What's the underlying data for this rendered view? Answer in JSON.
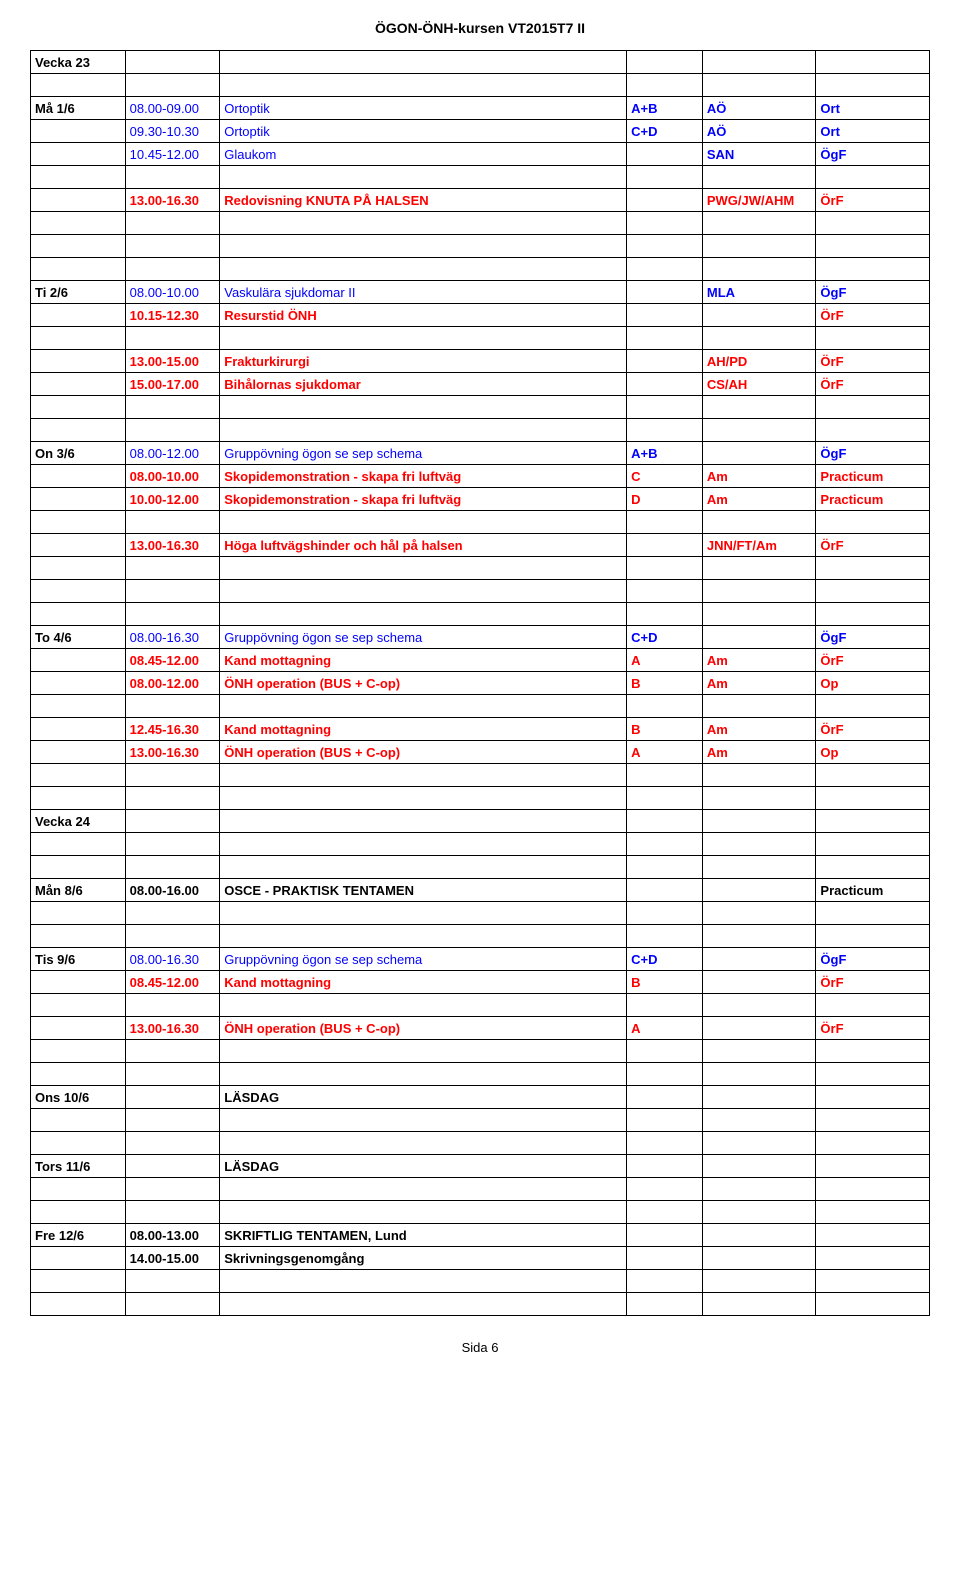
{
  "header": "ÖGON-ÖNH-kursen VT2015T7 II",
  "footer": "Sida 6",
  "colors": {
    "black": "#000000",
    "red": "#ff0000",
    "blue": "#0000ff"
  },
  "rows": [
    {
      "cells": [
        {
          "t": "Vecka 23",
          "b": 1
        },
        {
          "t": ""
        },
        {
          "t": ""
        },
        {
          "t": ""
        },
        {
          "t": ""
        },
        {
          "t": ""
        }
      ]
    },
    {
      "cells": [
        {
          "t": ""
        },
        {
          "t": ""
        },
        {
          "t": ""
        },
        {
          "t": ""
        },
        {
          "t": ""
        },
        {
          "t": ""
        }
      ]
    },
    {
      "cells": [
        {
          "t": "Må 1/6",
          "b": 1
        },
        {
          "t": "08.00-09.00",
          "c": "blue"
        },
        {
          "t": "Ortoptik",
          "c": "blue"
        },
        {
          "t": "A+B",
          "c": "blue",
          "b": 1
        },
        {
          "t": "AÖ",
          "c": "blue",
          "b": 1
        },
        {
          "t": "Ort",
          "c": "blue",
          "b": 1
        }
      ]
    },
    {
      "cells": [
        {
          "t": ""
        },
        {
          "t": "09.30-10.30",
          "c": "blue"
        },
        {
          "t": "Ortoptik",
          "c": "blue"
        },
        {
          "t": "C+D",
          "c": "blue",
          "b": 1
        },
        {
          "t": "AÖ",
          "c": "blue",
          "b": 1
        },
        {
          "t": "Ort",
          "c": "blue",
          "b": 1
        }
      ]
    },
    {
      "cells": [
        {
          "t": ""
        },
        {
          "t": "10.45-12.00",
          "c": "blue"
        },
        {
          "t": "Glaukom",
          "c": "blue"
        },
        {
          "t": ""
        },
        {
          "t": "SAN",
          "c": "blue",
          "b": 1
        },
        {
          "t": "ÖgF",
          "c": "blue",
          "b": 1
        }
      ]
    },
    {
      "cells": [
        {
          "t": ""
        },
        {
          "t": ""
        },
        {
          "t": ""
        },
        {
          "t": ""
        },
        {
          "t": ""
        },
        {
          "t": ""
        }
      ]
    },
    {
      "cells": [
        {
          "t": ""
        },
        {
          "t": "13.00-16.30",
          "c": "red",
          "b": 1
        },
        {
          "t": "Redovisning KNUTA PÅ HALSEN",
          "c": "red",
          "b": 1
        },
        {
          "t": ""
        },
        {
          "t": "PWG/JW/AHM",
          "c": "red",
          "b": 1
        },
        {
          "t": "ÖrF",
          "c": "red",
          "b": 1
        }
      ]
    },
    {
      "cells": [
        {
          "t": ""
        },
        {
          "t": ""
        },
        {
          "t": ""
        },
        {
          "t": ""
        },
        {
          "t": ""
        },
        {
          "t": ""
        }
      ]
    },
    {
      "cells": [
        {
          "t": ""
        },
        {
          "t": ""
        },
        {
          "t": ""
        },
        {
          "t": ""
        },
        {
          "t": ""
        },
        {
          "t": ""
        }
      ]
    },
    {
      "cells": [
        {
          "t": ""
        },
        {
          "t": ""
        },
        {
          "t": ""
        },
        {
          "t": ""
        },
        {
          "t": ""
        },
        {
          "t": ""
        }
      ]
    },
    {
      "cells": [
        {
          "t": "Ti 2/6",
          "b": 1
        },
        {
          "t": "08.00-10.00",
          "c": "blue"
        },
        {
          "t": "Vaskulära sjukdomar II",
          "c": "blue"
        },
        {
          "t": ""
        },
        {
          "t": "MLA",
          "c": "blue",
          "b": 1
        },
        {
          "t": "ÖgF",
          "c": "blue",
          "b": 1
        }
      ]
    },
    {
      "cells": [
        {
          "t": ""
        },
        {
          "t": "10.15-12.30",
          "c": "red",
          "b": 1
        },
        {
          "t": "Resurstid ÖNH",
          "c": "red",
          "b": 1
        },
        {
          "t": ""
        },
        {
          "t": ""
        },
        {
          "t": "ÖrF",
          "c": "red",
          "b": 1
        }
      ]
    },
    {
      "cells": [
        {
          "t": ""
        },
        {
          "t": ""
        },
        {
          "t": ""
        },
        {
          "t": ""
        },
        {
          "t": ""
        },
        {
          "t": ""
        }
      ]
    },
    {
      "cells": [
        {
          "t": ""
        },
        {
          "t": "13.00-15.00",
          "c": "red",
          "b": 1
        },
        {
          "t": "Frakturkirurgi",
          "c": "red",
          "b": 1
        },
        {
          "t": ""
        },
        {
          "t": "AH/PD",
          "c": "red",
          "b": 1
        },
        {
          "t": "ÖrF",
          "c": "red",
          "b": 1
        }
      ]
    },
    {
      "cells": [
        {
          "t": ""
        },
        {
          "t": "15.00-17.00",
          "c": "red",
          "b": 1
        },
        {
          "t": "Bihålornas sjukdomar",
          "c": "red",
          "b": 1
        },
        {
          "t": ""
        },
        {
          "t": "CS/AH",
          "c": "red",
          "b": 1
        },
        {
          "t": "ÖrF",
          "c": "red",
          "b": 1
        }
      ]
    },
    {
      "cells": [
        {
          "t": ""
        },
        {
          "t": ""
        },
        {
          "t": ""
        },
        {
          "t": ""
        },
        {
          "t": ""
        },
        {
          "t": ""
        }
      ]
    },
    {
      "cells": [
        {
          "t": ""
        },
        {
          "t": ""
        },
        {
          "t": ""
        },
        {
          "t": ""
        },
        {
          "t": ""
        },
        {
          "t": ""
        }
      ]
    },
    {
      "cells": [
        {
          "t": "On 3/6",
          "b": 1
        },
        {
          "t": "08.00-12.00",
          "c": "blue"
        },
        {
          "t": "Gruppövning ögon se sep schema",
          "c": "blue"
        },
        {
          "t": "A+B",
          "c": "blue",
          "b": 1
        },
        {
          "t": ""
        },
        {
          "t": "ÖgF",
          "c": "blue",
          "b": 1
        }
      ]
    },
    {
      "cells": [
        {
          "t": ""
        },
        {
          "t": "08.00-10.00",
          "c": "red",
          "b": 1
        },
        {
          "t": "Skopidemonstration - skapa fri luftväg",
          "c": "red",
          "b": 1
        },
        {
          "t": "C",
          "c": "red",
          "b": 1
        },
        {
          "t": "Am",
          "c": "red",
          "b": 1
        },
        {
          "t": "Practicum",
          "c": "red",
          "b": 1
        }
      ]
    },
    {
      "cells": [
        {
          "t": ""
        },
        {
          "t": "10.00-12.00",
          "c": "red",
          "b": 1
        },
        {
          "t": "Skopidemonstration - skapa fri luftväg",
          "c": "red",
          "b": 1
        },
        {
          "t": "D",
          "c": "red",
          "b": 1
        },
        {
          "t": "Am",
          "c": "red",
          "b": 1
        },
        {
          "t": "Practicum",
          "c": "red",
          "b": 1
        }
      ]
    },
    {
      "cells": [
        {
          "t": ""
        },
        {
          "t": ""
        },
        {
          "t": ""
        },
        {
          "t": ""
        },
        {
          "t": ""
        },
        {
          "t": ""
        }
      ]
    },
    {
      "cells": [
        {
          "t": ""
        },
        {
          "t": "13.00-16.30",
          "c": "red",
          "b": 1
        },
        {
          "t": "Höga luftvägshinder och hål på halsen",
          "c": "red",
          "b": 1
        },
        {
          "t": ""
        },
        {
          "t": "JNN/FT/Am",
          "c": "red",
          "b": 1
        },
        {
          "t": "ÖrF",
          "c": "red",
          "b": 1
        }
      ]
    },
    {
      "cells": [
        {
          "t": ""
        },
        {
          "t": ""
        },
        {
          "t": ""
        },
        {
          "t": ""
        },
        {
          "t": ""
        },
        {
          "t": ""
        }
      ]
    },
    {
      "cells": [
        {
          "t": ""
        },
        {
          "t": ""
        },
        {
          "t": ""
        },
        {
          "t": ""
        },
        {
          "t": ""
        },
        {
          "t": ""
        }
      ]
    },
    {
      "cells": [
        {
          "t": ""
        },
        {
          "t": ""
        },
        {
          "t": ""
        },
        {
          "t": ""
        },
        {
          "t": ""
        },
        {
          "t": ""
        }
      ]
    },
    {
      "cells": [
        {
          "t": "To 4/6",
          "b": 1
        },
        {
          "t": "08.00-16.30",
          "c": "blue"
        },
        {
          "t": "Gruppövning ögon se sep schema",
          "c": "blue"
        },
        {
          "t": "C+D",
          "c": "blue",
          "b": 1
        },
        {
          "t": ""
        },
        {
          "t": "ÖgF",
          "c": "blue",
          "b": 1
        }
      ]
    },
    {
      "cells": [
        {
          "t": ""
        },
        {
          "t": "08.45-12.00",
          "c": "red",
          "b": 1
        },
        {
          "t": "Kand mottagning",
          "c": "red",
          "b": 1
        },
        {
          "t": "A",
          "c": "red",
          "b": 1
        },
        {
          "t": "Am",
          "c": "red",
          "b": 1
        },
        {
          "t": "ÖrF",
          "c": "red",
          "b": 1
        }
      ]
    },
    {
      "cells": [
        {
          "t": ""
        },
        {
          "t": "08.00-12.00",
          "c": "red",
          "b": 1
        },
        {
          "t": "ÖNH operation (BUS + C-op)",
          "c": "red",
          "b": 1
        },
        {
          "t": "B",
          "c": "red",
          "b": 1
        },
        {
          "t": "Am",
          "c": "red",
          "b": 1
        },
        {
          "t": "Op",
          "c": "red",
          "b": 1
        }
      ]
    },
    {
      "cells": [
        {
          "t": ""
        },
        {
          "t": ""
        },
        {
          "t": ""
        },
        {
          "t": ""
        },
        {
          "t": ""
        },
        {
          "t": ""
        }
      ]
    },
    {
      "cells": [
        {
          "t": ""
        },
        {
          "t": "12.45-16.30",
          "c": "red",
          "b": 1
        },
        {
          "t": "Kand mottagning",
          "c": "red",
          "b": 1
        },
        {
          "t": "B",
          "c": "red",
          "b": 1
        },
        {
          "t": "Am",
          "c": "red",
          "b": 1
        },
        {
          "t": "ÖrF",
          "c": "red",
          "b": 1
        }
      ]
    },
    {
      "cells": [
        {
          "t": ""
        },
        {
          "t": "13.00-16.30",
          "c": "red",
          "b": 1
        },
        {
          "t": "ÖNH operation (BUS + C-op)",
          "c": "red",
          "b": 1
        },
        {
          "t": "A",
          "c": "red",
          "b": 1
        },
        {
          "t": "Am",
          "c": "red",
          "b": 1
        },
        {
          "t": "Op",
          "c": "red",
          "b": 1
        }
      ]
    },
    {
      "cells": [
        {
          "t": ""
        },
        {
          "t": ""
        },
        {
          "t": ""
        },
        {
          "t": ""
        },
        {
          "t": ""
        },
        {
          "t": ""
        }
      ]
    },
    {
      "cells": [
        {
          "t": ""
        },
        {
          "t": ""
        },
        {
          "t": ""
        },
        {
          "t": ""
        },
        {
          "t": ""
        },
        {
          "t": ""
        }
      ]
    },
    {
      "cells": [
        {
          "t": "Vecka 24",
          "b": 1
        },
        {
          "t": ""
        },
        {
          "t": ""
        },
        {
          "t": ""
        },
        {
          "t": ""
        },
        {
          "t": ""
        }
      ]
    },
    {
      "cells": [
        {
          "t": ""
        },
        {
          "t": ""
        },
        {
          "t": ""
        },
        {
          "t": ""
        },
        {
          "t": ""
        },
        {
          "t": ""
        }
      ]
    },
    {
      "cells": [
        {
          "t": ""
        },
        {
          "t": ""
        },
        {
          "t": ""
        },
        {
          "t": ""
        },
        {
          "t": ""
        },
        {
          "t": ""
        }
      ]
    },
    {
      "cells": [
        {
          "t": "Mån 8/6",
          "b": 1
        },
        {
          "t": "08.00-16.00",
          "b": 1
        },
        {
          "t": "OSCE - PRAKTISK TENTAMEN",
          "b": 1
        },
        {
          "t": ""
        },
        {
          "t": ""
        },
        {
          "t": "Practicum",
          "b": 1
        }
      ]
    },
    {
      "cells": [
        {
          "t": ""
        },
        {
          "t": ""
        },
        {
          "t": ""
        },
        {
          "t": ""
        },
        {
          "t": ""
        },
        {
          "t": ""
        }
      ]
    },
    {
      "cells": [
        {
          "t": ""
        },
        {
          "t": ""
        },
        {
          "t": ""
        },
        {
          "t": ""
        },
        {
          "t": ""
        },
        {
          "t": ""
        }
      ]
    },
    {
      "cells": [
        {
          "t": "Tis 9/6",
          "b": 1
        },
        {
          "t": "08.00-16.30",
          "c": "blue"
        },
        {
          "t": "Gruppövning ögon se sep schema",
          "c": "blue"
        },
        {
          "t": "C+D",
          "c": "blue",
          "b": 1
        },
        {
          "t": ""
        },
        {
          "t": "ÖgF",
          "c": "blue",
          "b": 1
        }
      ]
    },
    {
      "cells": [
        {
          "t": ""
        },
        {
          "t": "08.45-12.00",
          "c": "red",
          "b": 1
        },
        {
          "t": "Kand mottagning",
          "c": "red",
          "b": 1
        },
        {
          "t": "B",
          "c": "red",
          "b": 1
        },
        {
          "t": ""
        },
        {
          "t": "ÖrF",
          "c": "red",
          "b": 1
        }
      ]
    },
    {
      "cells": [
        {
          "t": ""
        },
        {
          "t": ""
        },
        {
          "t": ""
        },
        {
          "t": ""
        },
        {
          "t": ""
        },
        {
          "t": ""
        }
      ]
    },
    {
      "cells": [
        {
          "t": ""
        },
        {
          "t": "13.00-16.30",
          "c": "red",
          "b": 1
        },
        {
          "t": "ÖNH operation (BUS + C-op)",
          "c": "red",
          "b": 1
        },
        {
          "t": "A",
          "c": "red",
          "b": 1
        },
        {
          "t": ""
        },
        {
          "t": "ÖrF",
          "c": "red",
          "b": 1
        }
      ]
    },
    {
      "cells": [
        {
          "t": ""
        },
        {
          "t": ""
        },
        {
          "t": ""
        },
        {
          "t": ""
        },
        {
          "t": ""
        },
        {
          "t": ""
        }
      ]
    },
    {
      "cells": [
        {
          "t": ""
        },
        {
          "t": ""
        },
        {
          "t": ""
        },
        {
          "t": ""
        },
        {
          "t": ""
        },
        {
          "t": ""
        }
      ]
    },
    {
      "cells": [
        {
          "t": "Ons 10/6",
          "b": 1
        },
        {
          "t": ""
        },
        {
          "t": "LÄSDAG",
          "b": 1
        },
        {
          "t": ""
        },
        {
          "t": ""
        },
        {
          "t": ""
        }
      ]
    },
    {
      "cells": [
        {
          "t": ""
        },
        {
          "t": ""
        },
        {
          "t": ""
        },
        {
          "t": ""
        },
        {
          "t": ""
        },
        {
          "t": ""
        }
      ]
    },
    {
      "cells": [
        {
          "t": ""
        },
        {
          "t": ""
        },
        {
          "t": ""
        },
        {
          "t": ""
        },
        {
          "t": ""
        },
        {
          "t": ""
        }
      ]
    },
    {
      "cells": [
        {
          "t": "Tors 11/6",
          "b": 1
        },
        {
          "t": ""
        },
        {
          "t": "LÄSDAG",
          "b": 1
        },
        {
          "t": ""
        },
        {
          "t": ""
        },
        {
          "t": ""
        }
      ]
    },
    {
      "cells": [
        {
          "t": ""
        },
        {
          "t": ""
        },
        {
          "t": ""
        },
        {
          "t": ""
        },
        {
          "t": ""
        },
        {
          "t": ""
        }
      ]
    },
    {
      "cells": [
        {
          "t": ""
        },
        {
          "t": ""
        },
        {
          "t": ""
        },
        {
          "t": ""
        },
        {
          "t": ""
        },
        {
          "t": ""
        }
      ]
    },
    {
      "cells": [
        {
          "t": "Fre 12/6",
          "b": 1
        },
        {
          "t": "08.00-13.00",
          "b": 1
        },
        {
          "t": "SKRIFTLIG TENTAMEN, Lund",
          "b": 1
        },
        {
          "t": ""
        },
        {
          "t": ""
        },
        {
          "t": ""
        }
      ]
    },
    {
      "cells": [
        {
          "t": ""
        },
        {
          "t": "14.00-15.00",
          "b": 1
        },
        {
          "t": "Skrivningsgenomgång",
          "b": 1
        },
        {
          "t": ""
        },
        {
          "t": ""
        },
        {
          "t": ""
        }
      ]
    },
    {
      "cells": [
        {
          "t": ""
        },
        {
          "t": ""
        },
        {
          "t": ""
        },
        {
          "t": ""
        },
        {
          "t": ""
        },
        {
          "t": ""
        }
      ]
    },
    {
      "cells": [
        {
          "t": ""
        },
        {
          "t": ""
        },
        {
          "t": ""
        },
        {
          "t": ""
        },
        {
          "t": ""
        },
        {
          "t": ""
        }
      ]
    }
  ]
}
